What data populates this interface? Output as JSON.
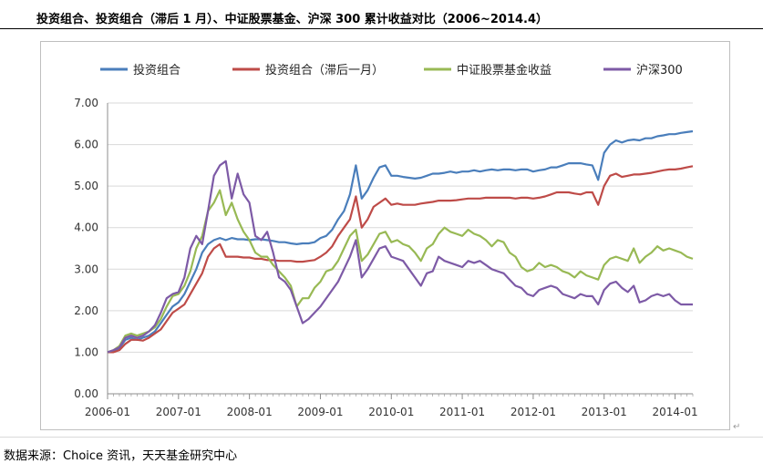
{
  "header": {
    "title": "投资组合、投资组合（滞后 1 月）、中证股票基金、沪深 300 累计收益对比（2006~2014.4）"
  },
  "footer": {
    "source": "数据来源：Choice 资讯，天天基金研究中心"
  },
  "chart_data": {
    "type": "line",
    "title": "",
    "xlabel": "",
    "ylabel": "",
    "ylim": [
      0,
      7
    ],
    "grid": true,
    "legend_position": "top",
    "x_ticks": [
      "2006-01",
      "2007-01",
      "2008-01",
      "2009-01",
      "2010-01",
      "2011-01",
      "2012-01",
      "2013-01",
      "2014-01"
    ],
    "y_ticks": [
      "0.00",
      "1.00",
      "2.00",
      "3.00",
      "4.00",
      "5.00",
      "6.00",
      "7.00"
    ],
    "x": [
      "2006-01",
      "2006-02",
      "2006-03",
      "2006-04",
      "2006-05",
      "2006-06",
      "2006-07",
      "2006-08",
      "2006-09",
      "2006-10",
      "2006-11",
      "2006-12",
      "2007-01",
      "2007-02",
      "2007-03",
      "2007-04",
      "2007-05",
      "2007-06",
      "2007-07",
      "2007-08",
      "2007-09",
      "2007-10",
      "2007-11",
      "2007-12",
      "2008-01",
      "2008-02",
      "2008-03",
      "2008-04",
      "2008-05",
      "2008-06",
      "2008-07",
      "2008-08",
      "2008-09",
      "2008-10",
      "2008-11",
      "2008-12",
      "2009-01",
      "2009-02",
      "2009-03",
      "2009-04",
      "2009-05",
      "2009-06",
      "2009-07",
      "2009-08",
      "2009-09",
      "2009-10",
      "2009-11",
      "2009-12",
      "2010-01",
      "2010-02",
      "2010-03",
      "2010-04",
      "2010-05",
      "2010-06",
      "2010-07",
      "2010-08",
      "2010-09",
      "2010-10",
      "2010-11",
      "2010-12",
      "2011-01",
      "2011-02",
      "2011-03",
      "2011-04",
      "2011-05",
      "2011-06",
      "2011-07",
      "2011-08",
      "2011-09",
      "2011-10",
      "2011-11",
      "2011-12",
      "2012-01",
      "2012-02",
      "2012-03",
      "2012-04",
      "2012-05",
      "2012-06",
      "2012-07",
      "2012-08",
      "2012-09",
      "2012-10",
      "2012-11",
      "2012-12",
      "2013-01",
      "2013-02",
      "2013-03",
      "2013-04",
      "2013-05",
      "2013-06",
      "2013-07",
      "2013-08",
      "2013-09",
      "2013-10",
      "2013-11",
      "2013-12",
      "2014-01",
      "2014-02",
      "2014-03",
      "2014-04"
    ],
    "series": [
      {
        "name": "投资组合",
        "color": "#4a7ebb",
        "values": [
          1.0,
          1.02,
          1.1,
          1.3,
          1.35,
          1.3,
          1.35,
          1.4,
          1.5,
          1.7,
          1.9,
          2.1,
          2.2,
          2.4,
          2.7,
          3.0,
          3.4,
          3.6,
          3.7,
          3.75,
          3.7,
          3.75,
          3.72,
          3.72,
          3.7,
          3.72,
          3.72,
          3.7,
          3.68,
          3.65,
          3.65,
          3.62,
          3.6,
          3.62,
          3.62,
          3.65,
          3.75,
          3.8,
          3.95,
          4.2,
          4.4,
          4.8,
          5.5,
          4.7,
          4.9,
          5.2,
          5.45,
          5.5,
          5.25,
          5.25,
          5.22,
          5.2,
          5.18,
          5.2,
          5.25,
          5.3,
          5.3,
          5.32,
          5.35,
          5.32,
          5.35,
          5.35,
          5.38,
          5.35,
          5.38,
          5.4,
          5.38,
          5.4,
          5.4,
          5.38,
          5.4,
          5.4,
          5.35,
          5.38,
          5.4,
          5.45,
          5.45,
          5.5,
          5.55,
          5.55,
          5.55,
          5.52,
          5.5,
          5.15,
          5.8,
          6.0,
          6.1,
          6.05,
          6.1,
          6.12,
          6.1,
          6.15,
          6.15,
          6.2,
          6.22,
          6.25,
          6.25,
          6.28,
          6.3,
          6.32
        ]
      },
      {
        "name": "投资组合（滞后一月）",
        "color": "#be4b48",
        "values": [
          1.0,
          1.0,
          1.05,
          1.2,
          1.3,
          1.3,
          1.28,
          1.35,
          1.45,
          1.55,
          1.75,
          1.95,
          2.05,
          2.15,
          2.4,
          2.65,
          2.9,
          3.3,
          3.5,
          3.6,
          3.3,
          3.3,
          3.3,
          3.28,
          3.28,
          3.25,
          3.25,
          3.22,
          3.22,
          3.2,
          3.2,
          3.2,
          3.18,
          3.18,
          3.2,
          3.22,
          3.3,
          3.4,
          3.55,
          3.8,
          4.0,
          4.2,
          4.75,
          4.0,
          4.2,
          4.5,
          4.6,
          4.7,
          4.55,
          4.58,
          4.55,
          4.55,
          4.55,
          4.58,
          4.6,
          4.62,
          4.65,
          4.65,
          4.65,
          4.66,
          4.68,
          4.7,
          4.7,
          4.7,
          4.72,
          4.72,
          4.72,
          4.72,
          4.72,
          4.7,
          4.72,
          4.72,
          4.7,
          4.72,
          4.75,
          4.8,
          4.85,
          4.85,
          4.85,
          4.82,
          4.8,
          4.85,
          4.85,
          4.55,
          5.0,
          5.25,
          5.3,
          5.22,
          5.25,
          5.28,
          5.28,
          5.3,
          5.32,
          5.35,
          5.38,
          5.4,
          5.4,
          5.42,
          5.45,
          5.48
        ]
      },
      {
        "name": "中证股票基金收益",
        "color": "#98b954",
        "values": [
          1.0,
          1.05,
          1.15,
          1.4,
          1.45,
          1.4,
          1.45,
          1.5,
          1.6,
          1.8,
          2.1,
          2.35,
          2.4,
          2.6,
          2.95,
          3.5,
          3.8,
          4.4,
          4.6,
          4.9,
          4.3,
          4.6,
          4.2,
          3.9,
          3.7,
          3.4,
          3.3,
          3.3,
          3.1,
          2.95,
          2.8,
          2.6,
          2.1,
          2.3,
          2.3,
          2.55,
          2.7,
          2.95,
          3.0,
          3.2,
          3.5,
          3.8,
          3.95,
          3.2,
          3.35,
          3.6,
          3.85,
          3.9,
          3.65,
          3.7,
          3.6,
          3.55,
          3.4,
          3.2,
          3.5,
          3.6,
          3.85,
          4.0,
          3.9,
          3.85,
          3.8,
          3.95,
          3.85,
          3.8,
          3.7,
          3.55,
          3.7,
          3.65,
          3.4,
          3.3,
          3.05,
          2.95,
          3.0,
          3.15,
          3.05,
          3.1,
          3.05,
          2.95,
          2.9,
          2.8,
          2.95,
          2.85,
          2.8,
          2.75,
          3.1,
          3.25,
          3.3,
          3.25,
          3.2,
          3.5,
          3.15,
          3.3,
          3.4,
          3.55,
          3.45,
          3.5,
          3.45,
          3.4,
          3.3,
          3.25
        ]
      },
      {
        "name": "沪深300",
        "color": "#7d5aa6",
        "values": [
          1.0,
          1.05,
          1.12,
          1.35,
          1.4,
          1.35,
          1.4,
          1.5,
          1.65,
          1.95,
          2.3,
          2.4,
          2.45,
          2.8,
          3.5,
          3.8,
          3.6,
          4.4,
          5.25,
          5.5,
          5.6,
          4.7,
          5.3,
          4.8,
          4.6,
          3.8,
          3.7,
          3.9,
          3.4,
          2.8,
          2.7,
          2.5,
          2.1,
          1.7,
          1.8,
          1.95,
          2.1,
          2.3,
          2.5,
          2.7,
          3.0,
          3.3,
          3.7,
          2.8,
          3.0,
          3.25,
          3.5,
          3.55,
          3.3,
          3.25,
          3.2,
          3.0,
          2.8,
          2.6,
          2.9,
          2.95,
          3.3,
          3.2,
          3.15,
          3.1,
          3.05,
          3.2,
          3.15,
          3.2,
          3.1,
          3.0,
          2.95,
          2.9,
          2.75,
          2.6,
          2.55,
          2.4,
          2.35,
          2.5,
          2.55,
          2.6,
          2.55,
          2.4,
          2.35,
          2.3,
          2.4,
          2.35,
          2.35,
          2.15,
          2.5,
          2.65,
          2.7,
          2.55,
          2.45,
          2.6,
          2.2,
          2.25,
          2.35,
          2.4,
          2.35,
          2.4,
          2.25,
          2.15,
          2.15,
          2.15
        ]
      }
    ]
  }
}
